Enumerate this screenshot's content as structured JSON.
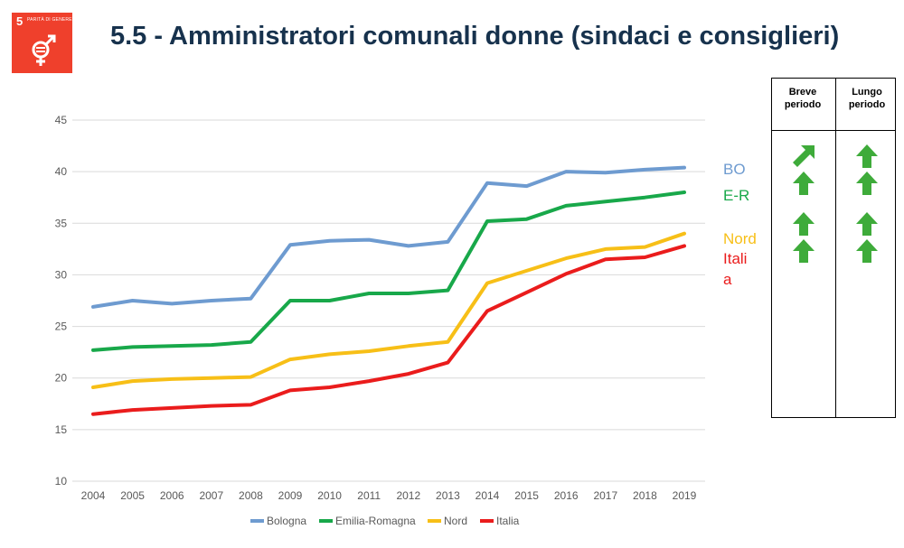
{
  "header": {
    "badge_number": "5",
    "badge_label": "PARITÀ DI GENERE",
    "title": "5.5 - Amministratori comunali donne (sindaci e consiglieri)"
  },
  "colors": {
    "bologna": "#6e9bd0",
    "emilia_romagna": "#18a84a",
    "nord": "#f7bf17",
    "italia": "#ea1c1c",
    "arrow": "#3eab3a",
    "badge": "#ef402c"
  },
  "chart_data": {
    "type": "line",
    "x": [
      "2004",
      "2005",
      "2006",
      "2007",
      "2008",
      "2009",
      "2010",
      "2011",
      "2012",
      "2013",
      "2014",
      "2015",
      "2016",
      "2017",
      "2018",
      "2019"
    ],
    "ylim": [
      10,
      45
    ],
    "yticks": [
      10,
      15,
      20,
      25,
      30,
      35,
      40,
      45
    ],
    "grid": true,
    "legend_position": "bottom",
    "series": [
      {
        "name": "Bologna",
        "color": "#6e9bd0",
        "values": [
          26.9,
          27.5,
          27.2,
          27.5,
          27.7,
          32.9,
          33.3,
          33.4,
          32.8,
          33.2,
          38.9,
          38.6,
          40.0,
          39.9,
          40.2,
          40.4
        ]
      },
      {
        "name": "Emilia-Romagna",
        "color": "#18a84a",
        "values": [
          22.7,
          23.0,
          23.1,
          23.2,
          23.5,
          27.5,
          27.5,
          28.2,
          28.2,
          28.5,
          35.2,
          35.4,
          36.7,
          37.1,
          37.5,
          38.0
        ]
      },
      {
        "name": "Nord",
        "color": "#f7bf17",
        "values": [
          19.1,
          19.7,
          19.9,
          20.0,
          20.1,
          21.8,
          22.3,
          22.6,
          23.1,
          23.5,
          29.2,
          30.4,
          31.6,
          32.5,
          32.7,
          34.0
        ]
      },
      {
        "name": "Italia",
        "color": "#ea1c1c",
        "values": [
          16.5,
          16.9,
          17.1,
          17.3,
          17.4,
          18.8,
          19.1,
          19.7,
          20.4,
          21.5,
          26.5,
          28.3,
          30.1,
          31.5,
          31.7,
          32.8
        ]
      }
    ]
  },
  "side_labels": [
    {
      "key": "bo",
      "text": "BO",
      "color": "#6e9bd0"
    },
    {
      "key": "er",
      "text": "E-R",
      "color": "#18a84a"
    },
    {
      "key": "nord",
      "text": "Nord",
      "color": "#f7bf17"
    },
    {
      "key": "italia_1",
      "text": "Itali",
      "color": "#ea1c1c"
    },
    {
      "key": "italia_2",
      "text": "a",
      "color": "#ea1c1c"
    }
  ],
  "trend_table": {
    "headers": [
      {
        "line1": "Breve",
        "line2": "periodo"
      },
      {
        "line1": "Lungo",
        "line2": "periodo"
      }
    ],
    "rows": [
      {
        "series": "BO",
        "breve": "up-right",
        "lungo": "up"
      },
      {
        "series": "E-R",
        "breve": "up",
        "lungo": "up"
      },
      {
        "series": "Nord",
        "breve": "up",
        "lungo": "up"
      },
      {
        "series": "Italia",
        "breve": "up",
        "lungo": "up"
      }
    ]
  }
}
